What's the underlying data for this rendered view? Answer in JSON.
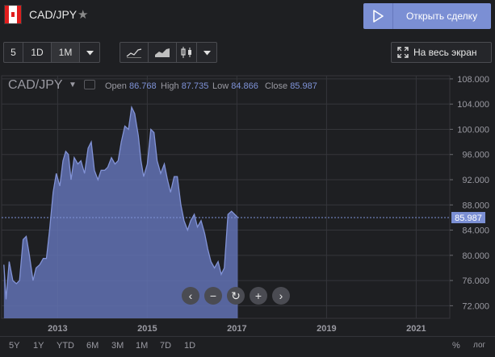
{
  "header": {
    "symbol": "CAD/JPY",
    "star_icon": "star-icon",
    "flag_icon": "canada-flag-icon",
    "open_trade_label": "Открыть сделку"
  },
  "toolbar": {
    "intervals": [
      "5",
      "1D",
      "1M"
    ],
    "active_interval": "1M",
    "chart_types": [
      "line-chart-icon",
      "area-chart-icon",
      "candles-chart-icon"
    ],
    "fullscreen_label": "На весь экран"
  },
  "legend": {
    "pair": "CAD/JPY",
    "open_label": "Open",
    "open_value": "86.768",
    "high_label": "High",
    "high_value": "87.735",
    "low_label": "Low",
    "low_value": "84.866",
    "close_label": "Close",
    "close_value": "85.987"
  },
  "price_tag": "85.987",
  "ranges": [
    "5Y",
    "1Y",
    "YTD",
    "6M",
    "3M",
    "1M",
    "7D",
    "1D"
  ],
  "percent_label": "%",
  "log_label": "лог",
  "colors": {
    "series": "#8293d6",
    "fill": "#6172b4",
    "background": "#1e1f22",
    "button": "#7b8fd4"
  },
  "chart_data": {
    "type": "area",
    "title": "",
    "xlabel": "",
    "ylabel": "",
    "x_ticks": [
      "2013",
      "2015",
      "2017",
      "2019",
      "2021"
    ],
    "y_ticks": [
      "72.000",
      "76.000",
      "80.000",
      "84.000",
      "88.000",
      "92.000",
      "96.000",
      "100.000",
      "104.000",
      "108.000"
    ],
    "ylim": [
      70,
      108.5
    ],
    "xlim": [
      2011.75,
      2021.75
    ],
    "last_value": 85.987,
    "series": [
      {
        "x": [
          2011.8,
          2011.85,
          2011.92,
          2012.0,
          2012.08,
          2012.15,
          2012.23,
          2012.3,
          2012.37,
          2012.45,
          2012.52,
          2012.6,
          2012.68,
          2012.75,
          2012.82,
          2012.9,
          2012.97,
          2013.05,
          2013.12,
          2013.18,
          2013.24,
          2013.3,
          2013.37,
          2013.45,
          2013.52,
          2013.6,
          2013.68,
          2013.75,
          2013.82,
          2013.9,
          2013.97,
          2014.05,
          2014.12,
          2014.2,
          2014.28,
          2014.35,
          2014.42,
          2014.5,
          2014.58,
          2014.65,
          2014.72,
          2014.8,
          2014.86,
          2014.92,
          2015.0,
          2015.08,
          2015.15,
          2015.22,
          2015.3,
          2015.38,
          2015.45,
          2015.52,
          2015.6,
          2015.67,
          2015.75,
          2015.82,
          2015.9,
          2015.97,
          2016.05,
          2016.12,
          2016.2,
          2016.28,
          2016.35,
          2016.42,
          2016.5,
          2016.58,
          2016.65,
          2016.72,
          2016.8,
          2016.88,
          2016.95,
          2017.02
        ],
        "y": [
          78.5,
          73.0,
          79.0,
          76.0,
          75.5,
          76.0,
          82.5,
          83.0,
          80.0,
          76.0,
          78.0,
          78.5,
          79.5,
          79.5,
          84.0,
          90.0,
          93.0,
          91.0,
          95.0,
          96.5,
          96.0,
          92.0,
          95.5,
          94.5,
          95.0,
          93.0,
          97.0,
          98.0,
          93.5,
          92.0,
          93.5,
          93.5,
          94.0,
          95.5,
          94.5,
          95.0,
          98.0,
          100.5,
          100.0,
          103.5,
          102.5,
          99.0,
          95.0,
          92.5,
          94.5,
          100.0,
          99.5,
          95.0,
          93.0,
          94.5,
          92.0,
          90.0,
          92.5,
          92.5,
          88.0,
          85.5,
          84.0,
          85.5,
          86.5,
          84.5,
          85.5,
          83.5,
          81.0,
          79.0,
          78.0,
          79.0,
          77.0,
          78.0,
          86.5,
          87.0,
          86.5,
          85.987
        ]
      }
    ]
  }
}
